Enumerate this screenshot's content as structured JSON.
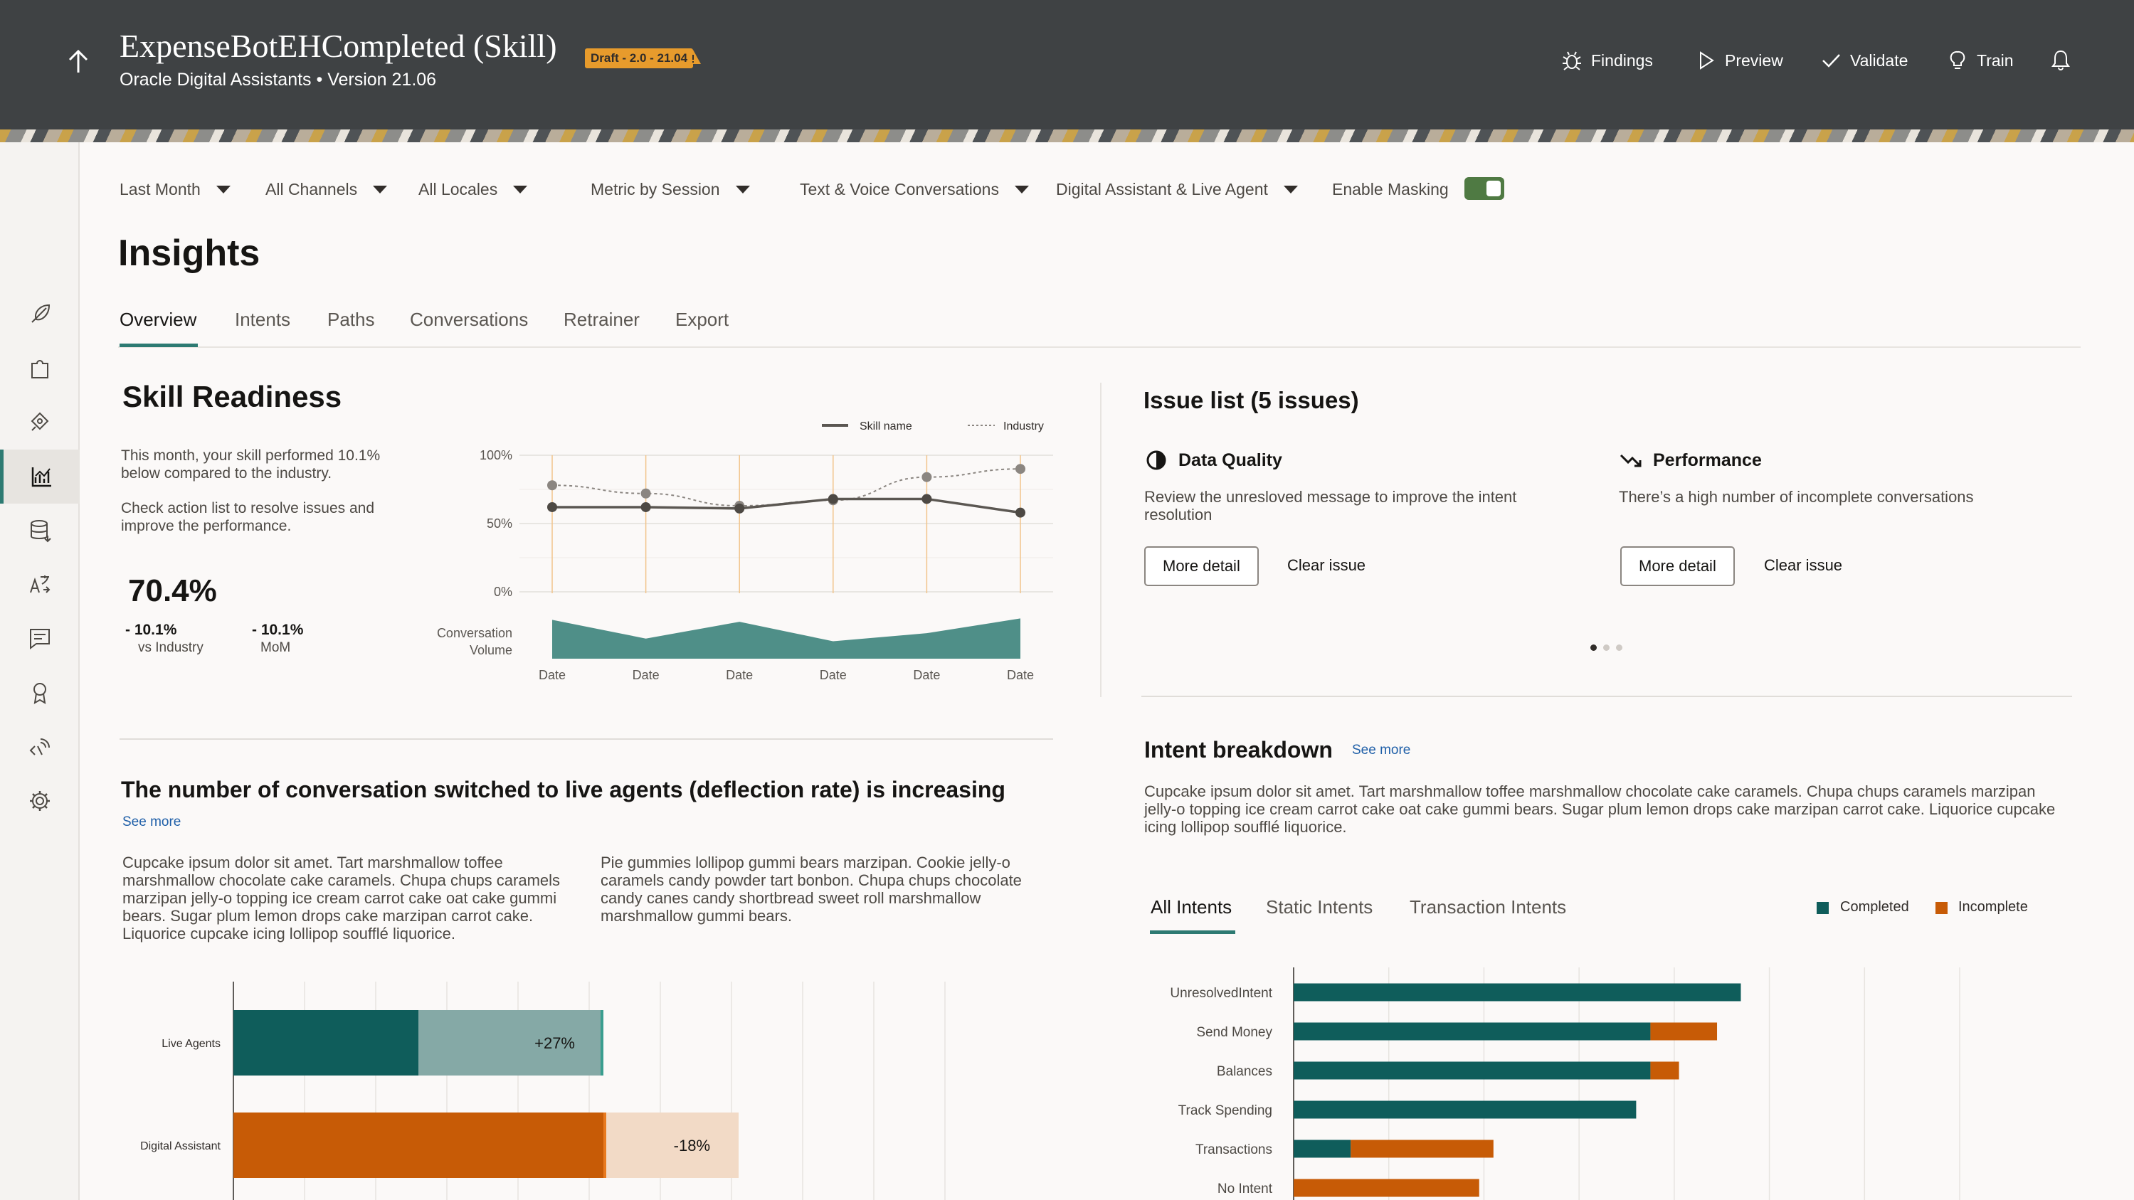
{
  "header": {
    "title": "ExpenseBotEHCompleted (Skill)",
    "badge": "Draft - 2.0 - 21.04",
    "subtitle": "Oracle Digital Assistants • Version 21.06",
    "actions": {
      "findings": "Findings",
      "preview": "Preview",
      "validate": "Validate",
      "train": "Train"
    }
  },
  "filters": {
    "period": "Last Month",
    "channels": "All Channels",
    "locales": "All Locales",
    "metric": "Metric by Session",
    "conversation_type": "Text & Voice Conversations",
    "agent_type": "Digital Assistant & Live Agent",
    "masking_label": "Enable Masking",
    "masking_on": true
  },
  "page_title": "Insights",
  "tabs": [
    "Overview",
    "Intents",
    "Paths",
    "Conversations",
    "Retrainer",
    "Export"
  ],
  "skill_readiness": {
    "title": "Skill Readiness",
    "text1": "This month, your skill performed 10.1% below compared to the industry.",
    "text2": "Check action list to resolve issues and improve the performance.",
    "score": "70.4%",
    "vs_industry_value": "- 10.1%",
    "vs_industry_label": "vs Industry",
    "mom_value": "- 10.1%",
    "mom_label": "MoM"
  },
  "readiness_chart": {
    "type": "line",
    "legend": {
      "skill": "Skill name",
      "industry": "Industry"
    },
    "y_ticks": [
      "100%",
      "50%",
      "0%"
    ],
    "ylim": [
      0,
      100
    ],
    "x": [
      "Date",
      "Date",
      "Date",
      "Date",
      "Date",
      "Date"
    ],
    "series": [
      {
        "name": "Skill name",
        "values": [
          62,
          62,
          61,
          68,
          68,
          58
        ]
      },
      {
        "name": "Industry",
        "values": [
          78,
          72,
          63,
          67,
          84,
          90
        ]
      }
    ],
    "volume_label": [
      "Conversation",
      "Volume"
    ],
    "volume_values": [
      58,
      30,
      55,
      26,
      38,
      60
    ],
    "colors": {
      "skill": "#5b5752",
      "industry": "#8b8681",
      "volume": "#4f8f88",
      "highlight": "#f1c48a"
    }
  },
  "issues": {
    "title": "Issue list (5 issues)",
    "items": [
      {
        "title": "Data Quality",
        "text": "Review the unresloved message to improve the intent resolution",
        "detail_label": "More detail",
        "clear_label": "Clear issue"
      },
      {
        "title": "Performance",
        "text": "There’s a high number of incomplete conversations",
        "detail_label": "More detail",
        "clear_label": "Clear issue"
      }
    ]
  },
  "intent_breakdown": {
    "title": "Intent breakdown",
    "see_more": "See more",
    "text": "Cupcake ipsum dolor sit amet. Tart marshmallow toffee marshmallow chocolate cake caramels. Chupa chups caramels marzipan jelly-o topping ice cream carrot cake oat cake gummi bears. Sugar plum lemon drops cake marzipan carrot cake. Liquorice cupcake icing lollipop soufflé liquorice.",
    "tabs": [
      "All Intents",
      "Static Intents",
      "Transaction Intents"
    ],
    "legend": {
      "completed": "Completed",
      "incomplete": "Incomplete"
    }
  },
  "deflection": {
    "title": "The number of conversation switched to live agents (deflection rate) is increasing",
    "see_more": "See more",
    "text1": "Cupcake ipsum dolor sit amet. Tart marshmallow toffee marshmallow chocolate cake caramels. Chupa chups caramels marzipan jelly-o topping ice cream carrot cake oat cake gummi bears. Sugar plum lemon drops cake marzipan carrot cake. Liquorice cupcake icing lollipop soufflé liquorice.",
    "text2": "Pie gummies lollipop gummi bears marzipan. Cookie jelly-o caramels candy powder tart bonbon. Chupa chups chocolate candy canes candy shortbread sweet roll marshmallow marshmallow gummi bears."
  },
  "chart_data": [
    {
      "type": "bar",
      "orientation": "horizontal",
      "stacked": true,
      "categories": [
        "Live Agents",
        "Digital Assistant"
      ],
      "series": [
        {
          "name": "",
          "values": [
            26,
            52
          ]
        },
        {
          "name": "",
          "values": [
            26,
            19
          ]
        }
      ],
      "data_labels": [
        "+27%",
        "-18%"
      ],
      "colors": {
        "base": [
          "#0f5d5b",
          "#c75b06"
        ],
        "change": [
          "#85a9a6",
          "#f2dac6"
        ],
        "marker": [
          "#3a9e8f",
          "#e87a1f"
        ]
      },
      "xlim": [
        0,
        100
      ]
    },
    {
      "type": "bar",
      "orientation": "horizontal",
      "stacked": true,
      "categories": [
        "UnresolvedIntent",
        "Send Money",
        "Balances",
        "Track Spending",
        "Transactions",
        "No Intent"
      ],
      "series": [
        {
          "name": "Completed",
          "values": [
            47,
            37.5,
            37.5,
            36,
            6,
            0
          ]
        },
        {
          "name": "Incomplete",
          "values": [
            0,
            7,
            3,
            0,
            15,
            19.5
          ]
        }
      ],
      "xlim": [
        0,
        70
      ],
      "colors": {
        "completed": "#0f5d5b",
        "incomplete": "#c75b06"
      }
    }
  ]
}
